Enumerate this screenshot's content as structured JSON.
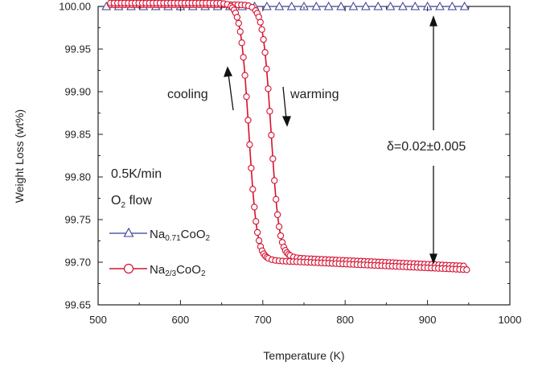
{
  "chart_data": {
    "type": "scatter",
    "xlabel": "Temperature (K)",
    "ylabel": "Weight Loss (wt%)",
    "xlim": [
      500,
      1000
    ],
    "ylim": [
      99.65,
      100.0
    ],
    "x_ticks": [
      "500",
      "600",
      "700",
      "800",
      "900",
      "1000"
    ],
    "y_ticks": [
      "99.65",
      "99.70",
      "99.75",
      "99.80",
      "99.85",
      "99.90",
      "99.95",
      "100.00"
    ],
    "grid": false,
    "legend_position": "bottom-left",
    "annotations": {
      "cooling": "cooling",
      "warming": "warming",
      "delta": "δ=0.02±0.005",
      "rate": "0.5K/min",
      "flow_main": "O",
      "flow_sub": "2",
      "flow_rest": " flow"
    },
    "series": [
      {
        "name": "Na0.71CoO2",
        "legend_parts": {
          "a": "Na",
          "b": "0.71",
          "c": "CoO",
          "d": "2"
        },
        "marker": "triangle",
        "color": "#3a3f8f",
        "x_start": 502,
        "x_end": 948,
        "y_constant": 100.0
      },
      {
        "name": "Na2/3CoO2",
        "legend_parts": {
          "a": "Na",
          "b": "2/3",
          "c": "CoO",
          "d": "2"
        },
        "marker": "circle",
        "color": "#d6102f",
        "branches": [
          {
            "label": "warming",
            "T_mid": 710,
            "width": 5,
            "upper": 100.002,
            "lower": 99.705,
            "tail_slope": -4.5e-05
          },
          {
            "label": "cooling",
            "T_mid": 683,
            "width": 5,
            "upper": 100.004,
            "lower": 99.702,
            "tail_slope": -4.5e-05
          }
        ],
        "x_start": 515,
        "x_end": 948
      }
    ]
  }
}
